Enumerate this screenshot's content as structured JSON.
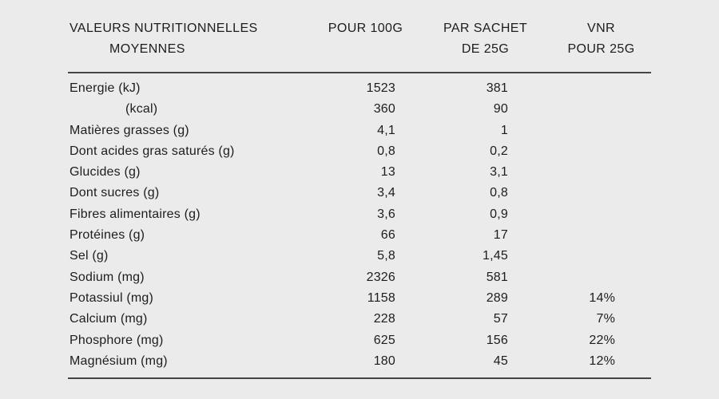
{
  "page": {
    "background_color": "#ebebeb",
    "text_color": "#1d1d1d",
    "rule_color": "#454545"
  },
  "table": {
    "headers": {
      "col1_line1": "VALEURS NUTRITIONNELLES",
      "col1_line2": "MOYENNES",
      "col2_line1": "POUR 100G",
      "col2_line2": "",
      "col3_line1": "PAR SACHET",
      "col3_line2": "DE 25G",
      "col4_line1": "VNR",
      "col4_line2": "POUR 25G"
    },
    "rows": [
      {
        "label": "Energie (kJ)",
        "per_100g": "1523",
        "per_sachet": "381",
        "vnr": ""
      },
      {
        "label": "(kcal)",
        "per_100g": "360",
        "per_sachet": "90",
        "vnr": ""
      },
      {
        "label": "Matières grasses (g)",
        "per_100g": "4,1",
        "per_sachet": "1",
        "vnr": ""
      },
      {
        "label": "Dont acides gras saturés (g)",
        "per_100g": "0,8",
        "per_sachet": "0,2",
        "vnr": ""
      },
      {
        "label": "Glucides (g)",
        "per_100g": "13",
        "per_sachet": "3,1",
        "vnr": ""
      },
      {
        "label": "Dont sucres (g)",
        "per_100g": "3,4",
        "per_sachet": "0,8",
        "vnr": ""
      },
      {
        "label": "Fibres alimentaires (g)",
        "per_100g": "3,6",
        "per_sachet": "0,9",
        "vnr": ""
      },
      {
        "label": "Protéines (g)",
        "per_100g": "66",
        "per_sachet": "17",
        "vnr": ""
      },
      {
        "label": "Sel (g)",
        "per_100g": "5,8",
        "per_sachet": "1,45",
        "vnr": ""
      },
      {
        "label": "Sodium (mg)",
        "per_100g": "2326",
        "per_sachet": "581",
        "vnr": ""
      },
      {
        "label": "Potassiul (mg)",
        "per_100g": "1158",
        "per_sachet": "289",
        "vnr": "14%"
      },
      {
        "label": "Calcium (mg)",
        "per_100g": "228",
        "per_sachet": "57",
        "vnr": "7%"
      },
      {
        "label": "Phosphore (mg)",
        "per_100g": "625",
        "per_sachet": "156",
        "vnr": "22%"
      },
      {
        "label": "Magnésium (mg)",
        "per_100g": "180",
        "per_sachet": "45",
        "vnr": "12%"
      }
    ]
  }
}
